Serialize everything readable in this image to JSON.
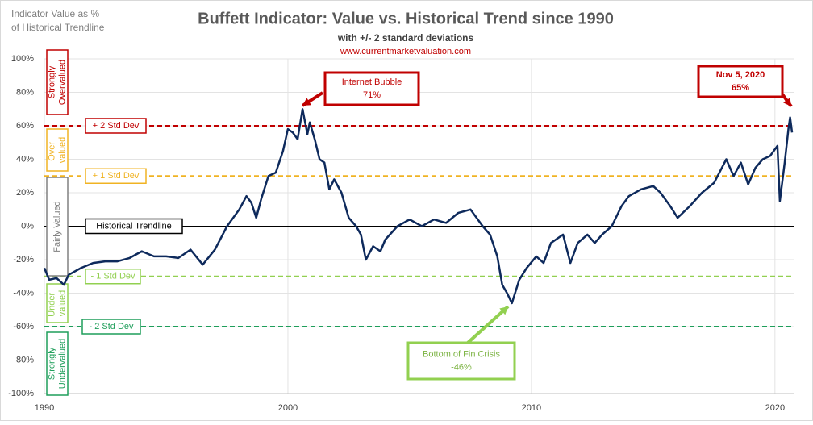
{
  "chart_data": {
    "type": "line",
    "title": "Buffett Indicator: Value vs. Historical Trend since 1990",
    "subtitle": "with +/- 2 standard deviations",
    "source": "www.currentmarketvaluation.com",
    "y_axis_label": [
      "Indicator Value as %",
      "of Historical Trendline"
    ],
    "color": "#0e2a5c",
    "x": [
      1990.0,
      1990.2,
      1990.5,
      1990.8,
      1991.0,
      1991.5,
      1992.0,
      1992.5,
      1993.0,
      1993.5,
      1994.0,
      1994.5,
      1995.0,
      1995.5,
      1996.0,
      1996.5,
      1997.0,
      1997.5,
      1998.0,
      1998.3,
      1998.5,
      1998.7,
      1998.9,
      1999.2,
      1999.5,
      1999.8,
      2000.0,
      2000.2,
      2000.4,
      2000.6,
      2000.8,
      2000.9,
      2001.1,
      2001.3,
      2001.5,
      2001.7,
      2001.9,
      2002.2,
      2002.5,
      2002.8,
      2003.0,
      2003.2,
      2003.5,
      2003.8,
      2004.0,
      2004.5,
      2005.0,
      2005.5,
      2006.0,
      2006.5,
      2007.0,
      2007.5,
      2008.0,
      2008.3,
      2008.6,
      2008.8,
      2009.0,
      2009.2,
      2009.5,
      2009.8,
      2010.2,
      2010.5,
      2010.8,
      2011.0,
      2011.3,
      2011.6,
      2011.9,
      2012.3,
      2012.6,
      2012.9,
      2013.3,
      2013.7,
      2014.0,
      2014.5,
      2015.0,
      2015.3,
      2015.7,
      2016.0,
      2016.5,
      2017.0,
      2017.5,
      2018.0,
      2018.3,
      2018.6,
      2018.9,
      2019.2,
      2019.5,
      2019.8,
      2020.1,
      2020.2,
      2020.4,
      2020.55,
      2020.62,
      2020.7
    ],
    "values": [
      -25,
      -32,
      -31,
      -35,
      -29,
      -25,
      -22,
      -21,
      -21,
      -19,
      -15,
      -18,
      -18,
      -19,
      -14,
      -23,
      -14,
      0,
      10,
      18,
      14,
      5,
      16,
      30,
      32,
      45,
      58,
      56,
      52,
      70,
      55,
      62,
      52,
      40,
      38,
      22,
      28,
      20,
      5,
      0,
      -5,
      -20,
      -12,
      -15,
      -8,
      0,
      4,
      0,
      4,
      2,
      8,
      10,
      0,
      -5,
      -18,
      -35,
      -40,
      -46,
      -32,
      -25,
      -18,
      -22,
      -10,
      -8,
      -5,
      -22,
      -10,
      -5,
      -10,
      -5,
      0,
      12,
      18,
      22,
      24,
      20,
      12,
      5,
      12,
      20,
      26,
      40,
      30,
      38,
      25,
      35,
      40,
      42,
      48,
      15,
      38,
      58,
      65,
      56
    ],
    "xlim": [
      1990,
      2020.8
    ],
    "xticks": [
      1990,
      2000,
      2010,
      2020
    ],
    "ylim": [
      -100,
      100
    ],
    "yticks": [
      {
        "value": -100,
        "label": "-100%"
      },
      {
        "value": -80,
        "label": "-80%"
      },
      {
        "value": -60,
        "label": "-60%"
      },
      {
        "value": -40,
        "label": "-40%"
      },
      {
        "value": -20,
        "label": "-20%"
      },
      {
        "value": 0,
        "label": "0%"
      },
      {
        "value": 20,
        "label": "20%"
      },
      {
        "value": 40,
        "label": "40%"
      },
      {
        "value": 60,
        "label": "60%"
      },
      {
        "value": 80,
        "label": "80%"
      },
      {
        "value": 100,
        "label": "100%"
      }
    ],
    "grid": true,
    "reference_lines": [
      {
        "label": "+ 2 Std Dev",
        "value": 60,
        "color": "#c00000"
      },
      {
        "label": "+ 1 Std Dev",
        "value": 30,
        "color": "#f0b323"
      },
      {
        "label": "Historical Trendline",
        "value": 0,
        "color": "#000000"
      },
      {
        "label": "- 1 Std Dev",
        "value": -30,
        "color": "#92d050"
      },
      {
        "label": "- 2 Std Dev",
        "value": -60,
        "color": "#1e9e5a"
      }
    ],
    "zones": [
      {
        "lines": [
          "Strongly",
          "Overvalued"
        ],
        "color": "#c00000"
      },
      {
        "lines": [
          "Over-",
          "valued"
        ],
        "color": "#f0b323"
      },
      {
        "lines": [
          "Fairly Valued"
        ],
        "color": "#808080"
      },
      {
        "lines": [
          "Under-",
          "valued"
        ],
        "color": "#92d050"
      },
      {
        "lines": [
          "Strongly",
          "Undervalued"
        ],
        "color": "#1e9e5a"
      }
    ],
    "annotations": [
      {
        "title": "Internet Bubble",
        "label": "71%",
        "color": "#c00000"
      },
      {
        "title": "Nov 5, 2020",
        "label": "65%",
        "color": "#c00000"
      },
      {
        "title": "Bottom of Fin Crisis",
        "label": "-46%",
        "color": "#92d050"
      }
    ]
  }
}
